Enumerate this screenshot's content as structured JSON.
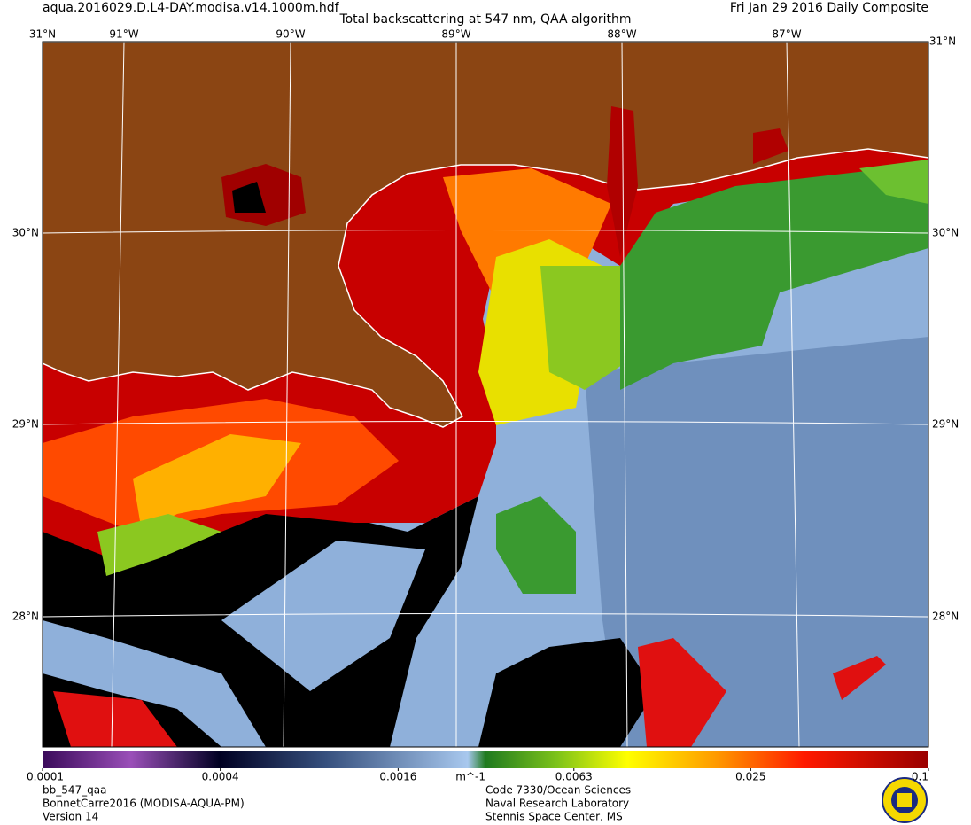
{
  "header": {
    "filename": "aqua.2016029.D.L4-DAY.modisa.v14.1000m.hdf",
    "title": "Total backscattering at 547 nm, QAA algorithm",
    "date": "Fri Jan 29 2016 Daily Composite"
  },
  "map": {
    "corner_label": "31°N",
    "lon_labels": [
      "91°W",
      "90°W",
      "89°W",
      "88°W",
      "87°W"
    ],
    "lat_labels": [
      "30°N",
      "29°N",
      "28°N"
    ]
  },
  "colorbar": {
    "scale": "log",
    "lim": [
      0.0001,
      0.1
    ],
    "ticks": [
      0.0001,
      0.0004,
      0.0016,
      0.0063,
      0.025,
      0.1
    ],
    "unit": "m^-1"
  },
  "footer": {
    "left": [
      "bb_547_qaa",
      "BonnetCarre2016 (MODISA-AQUA-PM)",
      "Version 14"
    ],
    "center": [
      "Code 7330/Ocean Sciences",
      "Naval Research Laboratory",
      "Stennis Space Center, MS"
    ]
  }
}
